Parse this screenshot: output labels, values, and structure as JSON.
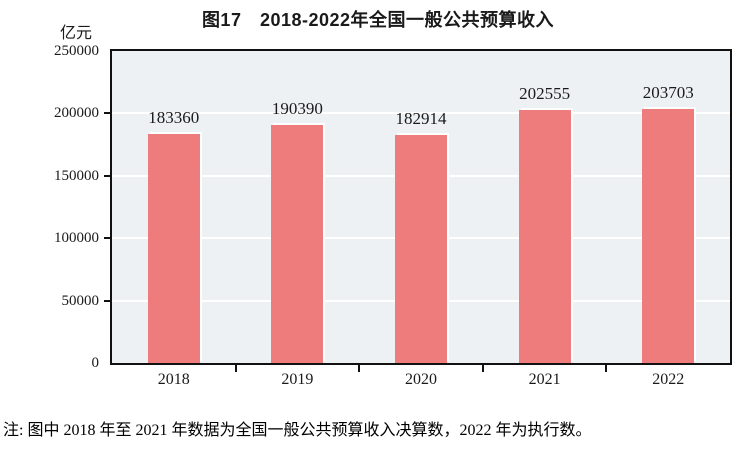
{
  "page": {
    "title": "图17　2018-2022年全国一般公共预算收入",
    "note": "注: 图中 2018 年至 2021 年数据为全国一般公共预算收入决算数，2022 年为执行数。"
  },
  "chart_data": {
    "type": "bar",
    "title": "图17　2018-2022年全国一般公共预算收入",
    "unit_label": "亿元",
    "categories": [
      "2018",
      "2019",
      "2020",
      "2021",
      "2022"
    ],
    "values": [
      183360,
      190390,
      182914,
      202555,
      203703
    ],
    "xlabel": "",
    "ylabel": "亿元",
    "ylim": [
      0,
      250000
    ],
    "ytick_interval": 50000,
    "yticks": [
      0,
      50000,
      100000,
      150000,
      200000,
      250000
    ],
    "grid": "horizontal white lines",
    "legend": "none",
    "data_labels": true,
    "colors": {
      "bar_fill": "#ee7c7c",
      "plot_background": "#edf1f4",
      "gridline": "#ffffff",
      "axis": "#111111",
      "text": "#1a1a1a"
    }
  }
}
